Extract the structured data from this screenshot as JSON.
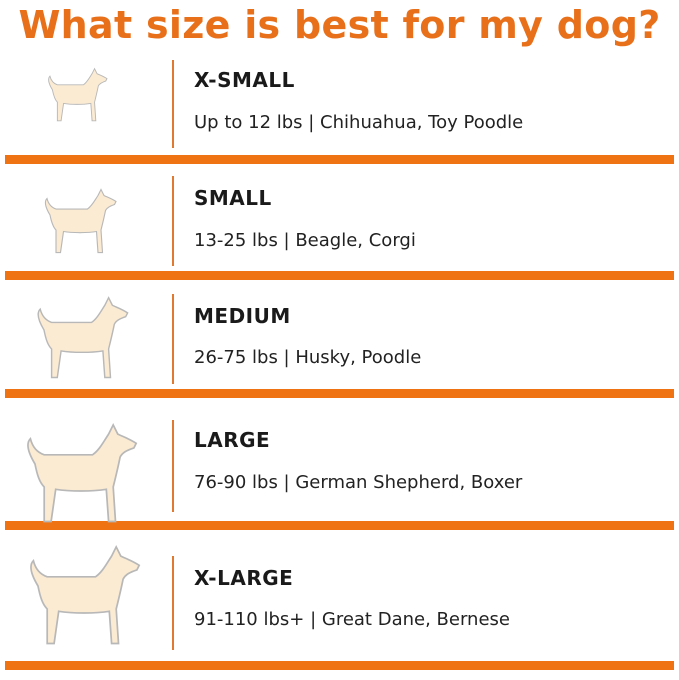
{
  "title": "What size is best for my dog?",
  "colors": {
    "title": "#E8701A",
    "bar": "#F07313",
    "divider": "#E07A30",
    "dog_fill": "#FBEBD3",
    "dog_outline": "#B8B8B8"
  },
  "sizes": [
    {
      "label": "X-SMALL",
      "description": "Up to 12 lbs | Chihuahua, Toy Poodle",
      "icon": "small-fluffy-dog-icon"
    },
    {
      "label": "SMALL",
      "description": "13-25 lbs | Beagle, Corgi",
      "icon": "beagle-icon"
    },
    {
      "label": "MEDIUM",
      "description": "26-75 lbs | Husky, Poodle",
      "icon": "husky-icon"
    },
    {
      "label": "LARGE",
      "description": "76-90 lbs | German Shepherd, Boxer",
      "icon": "german-shepherd-icon"
    },
    {
      "label": "X-LARGE",
      "description": "91-110 lbs+ | Great Dane, Bernese",
      "icon": "great-dane-icon"
    }
  ]
}
